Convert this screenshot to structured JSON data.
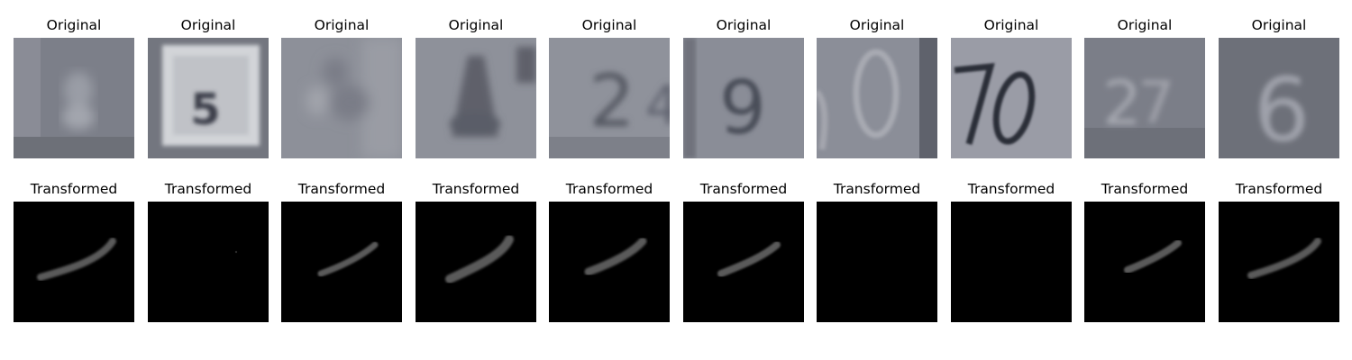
{
  "figure": {
    "rows": [
      {
        "title": "Original",
        "panels": [
          {
            "index": 0,
            "kind": "blurred house number photo, faint digit"
          },
          {
            "index": 1,
            "kind": "white plate with digit 5"
          },
          {
            "index": 2,
            "kind": "blurred house number photo, faint digit"
          },
          {
            "index": 3,
            "kind": "blurred dark digit shape"
          },
          {
            "index": 4,
            "kind": "blurred digit 2"
          },
          {
            "index": 5,
            "kind": "digit 9"
          },
          {
            "index": 6,
            "kind": "digit 0 with partial neighbor"
          },
          {
            "index": 7,
            "kind": "digits 70"
          },
          {
            "index": 8,
            "kind": "blurred light digits"
          },
          {
            "index": 9,
            "kind": "light digit 6"
          }
        ]
      },
      {
        "title": "Transformed",
        "panels": [
          {
            "index": 0,
            "stroke": 0.85
          },
          {
            "index": 1,
            "stroke": 0.0
          },
          {
            "index": 2,
            "stroke": 0.7
          },
          {
            "index": 3,
            "stroke": 0.95
          },
          {
            "index": 4,
            "stroke": 0.85
          },
          {
            "index": 5,
            "stroke": 0.75
          },
          {
            "index": 6,
            "stroke": 0.0
          },
          {
            "index": 7,
            "stroke": 0.0
          },
          {
            "index": 8,
            "stroke": 0.7
          },
          {
            "index": 9,
            "stroke": 0.85
          }
        ]
      }
    ],
    "colors": {
      "background": "#ffffff",
      "original_gray": "#8a8d96",
      "transformed_black": "#000000",
      "stroke_gray": "#5a5a5a"
    }
  }
}
